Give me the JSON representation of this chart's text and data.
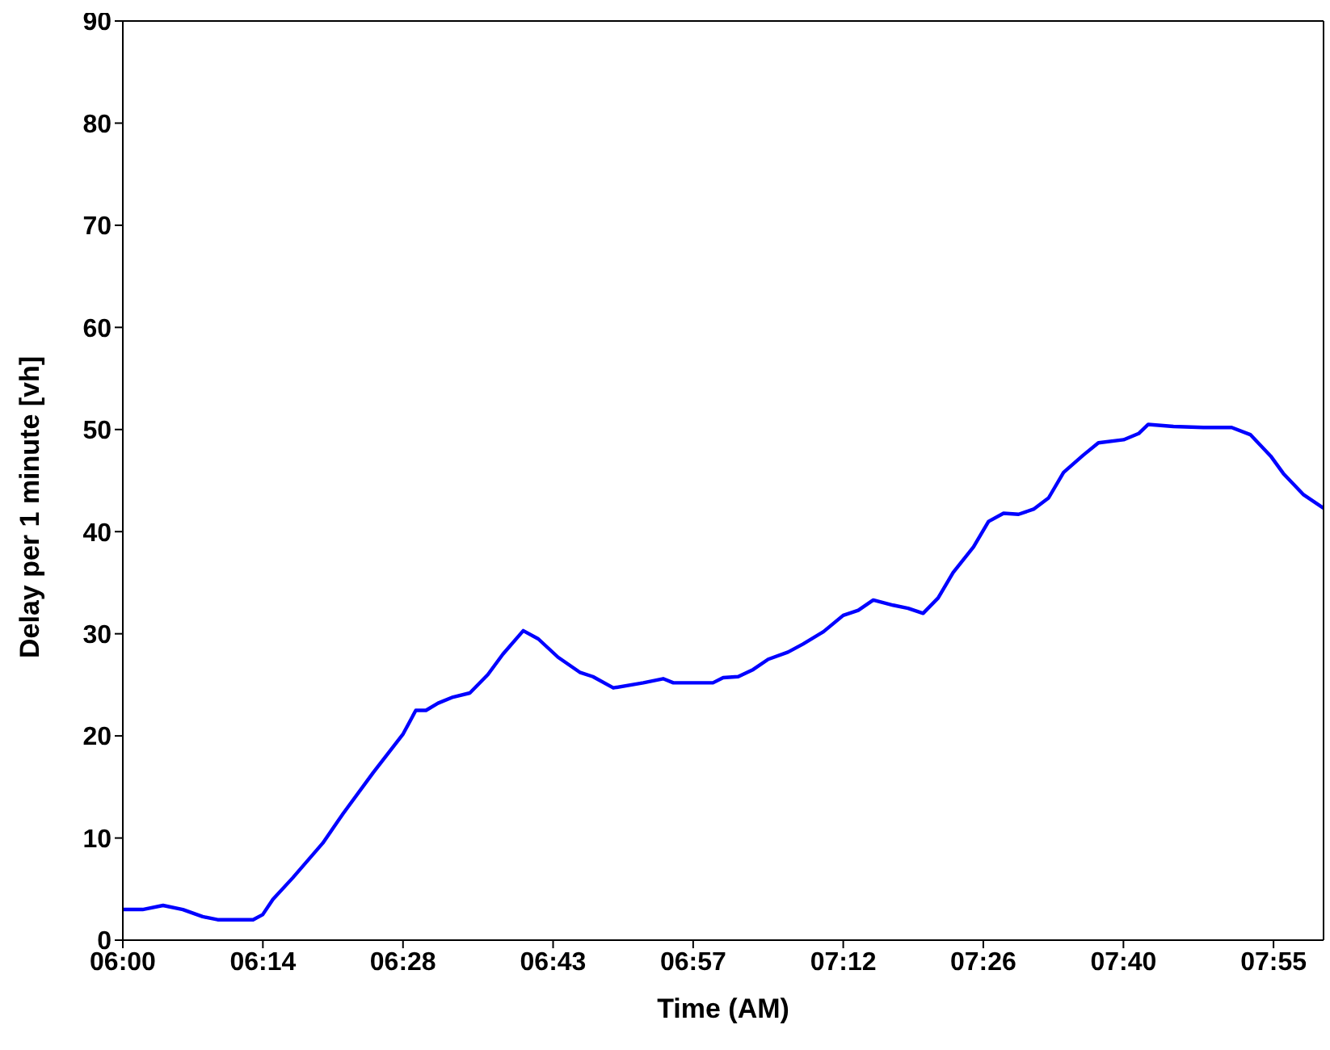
{
  "chart_data": {
    "type": "line",
    "xlabel": "Time (AM)",
    "ylabel": "Delay per 1 minute [vh]",
    "x": [
      6,
      6.033,
      6.067,
      6.1,
      6.133,
      6.158,
      6.217,
      6.233,
      6.25,
      6.283,
      6.333,
      6.367,
      6.417,
      6.467,
      6.488,
      6.505,
      6.525,
      6.55,
      6.578,
      6.608,
      6.633,
      6.667,
      6.692,
      6.725,
      6.762,
      6.783,
      6.817,
      6.867,
      6.9,
      6.917,
      6.983,
      7,
      7.025,
      7.05,
      7.075,
      7.108,
      7.133,
      7.167,
      7.2,
      7.225,
      7.25,
      7.283,
      7.308,
      7.333,
      7.358,
      7.383,
      7.417,
      7.442,
      7.467,
      7.492,
      7.517,
      7.542,
      7.567,
      7.6,
      7.625,
      7.667,
      7.692,
      7.708,
      7.75,
      7.8,
      7.847,
      7.878,
      7.912,
      7.933,
      7.967,
      8
    ],
    "series": [
      {
        "color": "#0000ff",
        "values": [
          3,
          3,
          3.4,
          3,
          2.3,
          2,
          2,
          2.5,
          4,
          6.1,
          9.5,
          12.4,
          16.4,
          20.2,
          22.5,
          22.5,
          23.2,
          23.8,
          24.2,
          26,
          28,
          30.3,
          29.5,
          27.7,
          26.2,
          25.8,
          24.7,
          25.2,
          25.6,
          25.2,
          25.2,
          25.7,
          25.8,
          26.5,
          27.5,
          28.2,
          29,
          30.2,
          31.8,
          32.3,
          33.3,
          32.8,
          32.5,
          32,
          33.5,
          36,
          38.5,
          41,
          41.8,
          41.7,
          42.2,
          43.3,
          45.8,
          47.5,
          48.7,
          49,
          49.6,
          50.5,
          50.3,
          50.2,
          50.2,
          49.5,
          47.4,
          45.7,
          43.6,
          42.3
        ]
      }
    ],
    "xlim": [
      6,
      8
    ],
    "xticks": [
      {
        "value": 6,
        "label": "06:00"
      },
      {
        "value": 6.2333,
        "label": "06:14"
      },
      {
        "value": 6.4667,
        "label": "06:28"
      },
      {
        "value": 6.7167,
        "label": "06:43"
      },
      {
        "value": 6.95,
        "label": "06:57"
      },
      {
        "value": 7.2,
        "label": "07:12"
      },
      {
        "value": 7.4333,
        "label": "07:26"
      },
      {
        "value": 7.6667,
        "label": "07:40"
      },
      {
        "value": 7.9167,
        "label": "07:55"
      }
    ],
    "ylim": [
      0,
      90
    ],
    "yticks": [
      0,
      10,
      20,
      30,
      40,
      50,
      60,
      70,
      80,
      90
    ],
    "grid": false,
    "legend": false,
    "marker": "none",
    "line_style": "solid"
  }
}
